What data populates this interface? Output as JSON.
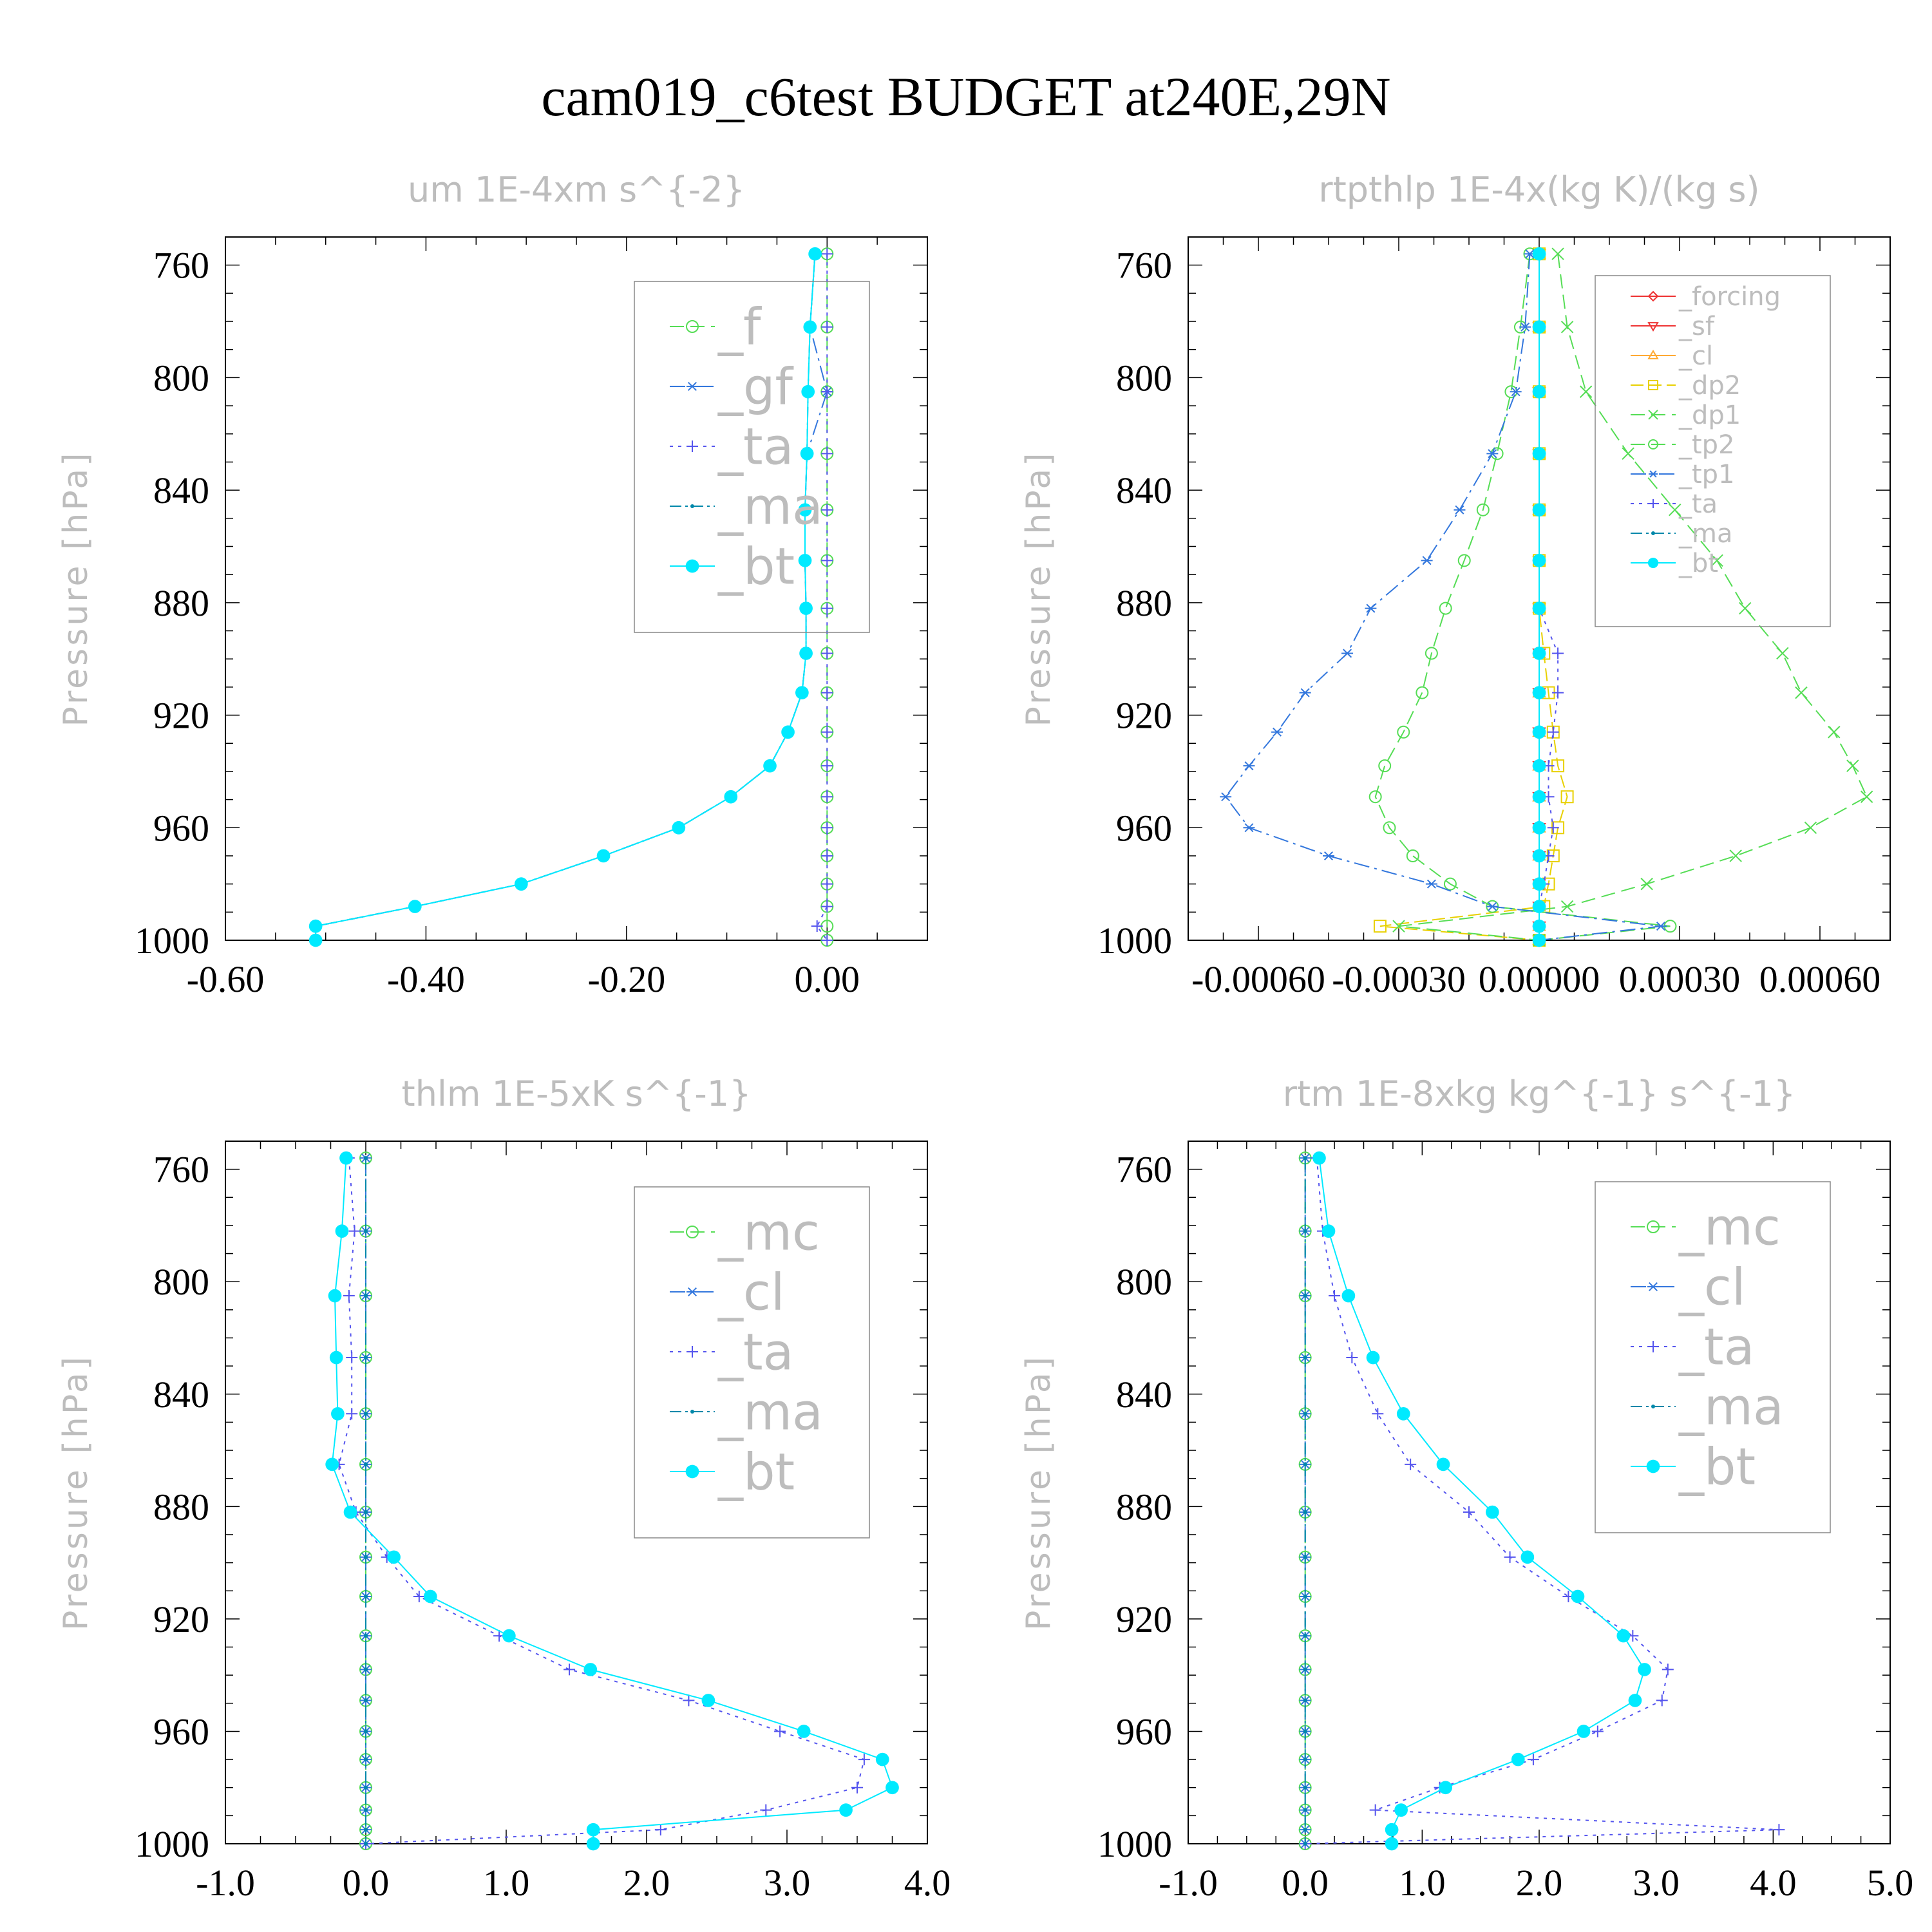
{
  "title": "cam019_c6test  BUDGET at240E,29N",
  "colors": {
    "green": "#55dd55",
    "blue": "#3377dd",
    "purple": "#5555ee",
    "teal": "#0088aa",
    "cyan": "#00eaff",
    "red": "#ee3333",
    "orange": "#ffaa33",
    "yellow": "#e8d000",
    "gray": "#bdbdbd"
  },
  "chart_data": [
    {
      "type": "line",
      "title": "um  1E-4xm s^{-2}",
      "ylabel": "Pressure [hPa]",
      "ylim": [
        1000,
        750
      ],
      "yticks": [
        "760",
        "800",
        "840",
        "880",
        "920",
        "960",
        "1000"
      ],
      "xlim": [
        -0.6,
        0.1
      ],
      "xticks": [
        "-0.60",
        "-0.40",
        "-0.20",
        "0.00"
      ],
      "legend": "top-right",
      "pressure": [
        756,
        782,
        805,
        827,
        847,
        865,
        882,
        898,
        912,
        926,
        938,
        949,
        960,
        970,
        980,
        988,
        995,
        1000
      ],
      "series": [
        {
          "name": "_f",
          "color": "green",
          "marker": "circle",
          "values": [
            0,
            0,
            0,
            0,
            0,
            0,
            0,
            0,
            0,
            0,
            0,
            0,
            0,
            0,
            0,
            0,
            0,
            0
          ]
        },
        {
          "name": "_gf",
          "color": "blue",
          "marker": "asterisk",
          "values": [
            -0.012,
            -0.017,
            -0.0,
            -0.02,
            -0.022,
            -0.022,
            -0.021,
            -0.021,
            -0.025,
            -0.039,
            -0.057,
            -0.096,
            -0.148,
            -0.223,
            -0.305,
            -0.411,
            -0.51,
            -0.51
          ]
        },
        {
          "name": "_ta",
          "color": "purple",
          "marker": "plus",
          "values": [
            0,
            0,
            0,
            0,
            0,
            0,
            0,
            0,
            0,
            0,
            0,
            0,
            0,
            0,
            0,
            0,
            -0.01,
            0
          ]
        },
        {
          "name": "_ma",
          "color": "teal",
          "marker": "dot",
          "values": [
            -0.012,
            -0.017,
            -0.019,
            -0.02,
            -0.022,
            -0.022,
            -0.021,
            -0.021,
            -0.025,
            -0.039,
            -0.057,
            -0.096,
            -0.148,
            -0.223,
            -0.305,
            -0.411,
            -0.51,
            -0.51
          ]
        },
        {
          "name": "_bt",
          "color": "cyan",
          "marker": "filled",
          "values": [
            -0.012,
            -0.017,
            -0.019,
            -0.02,
            -0.022,
            -0.022,
            -0.021,
            -0.021,
            -0.025,
            -0.039,
            -0.057,
            -0.096,
            -0.148,
            -0.223,
            -0.305,
            -0.411,
            -0.51,
            -0.51
          ]
        }
      ]
    },
    {
      "type": "line",
      "title": "rtpthlp  1E-4x(kg K)/(kg s)",
      "ylabel": "Pressure [hPa]",
      "ylim": [
        1000,
        750
      ],
      "yticks": [
        "760",
        "800",
        "840",
        "880",
        "920",
        "960",
        "1000"
      ],
      "xlim": [
        -0.00075,
        0.00075
      ],
      "xticks": [
        "-0.00060",
        "-0.00030",
        "0.00000",
        "0.00030",
        "0.00060"
      ],
      "legend": "top-right",
      "pressure": [
        756,
        782,
        805,
        827,
        847,
        865,
        882,
        898,
        912,
        926,
        938,
        949,
        960,
        970,
        980,
        988,
        995,
        1000
      ],
      "series": [
        {
          "name": "_forcing",
          "color": "red",
          "marker": "diamond",
          "values": [
            0,
            0,
            0,
            0,
            0,
            0,
            0,
            0,
            0,
            0,
            0,
            0,
            0,
            0,
            0,
            0,
            0,
            0
          ]
        },
        {
          "name": "_sf",
          "color": "red",
          "marker": "triangle-down",
          "values": [
            0,
            0,
            0,
            0,
            0,
            0,
            0,
            0,
            0,
            0,
            0,
            0,
            0,
            0,
            0,
            0,
            0,
            0
          ]
        },
        {
          "name": "_cl",
          "color": "orange",
          "marker": "triangle-up",
          "values": [
            0,
            0,
            0,
            0,
            0,
            0,
            0,
            0,
            0,
            0,
            0,
            0,
            0,
            0,
            0,
            0,
            0,
            0
          ]
        },
        {
          "name": "_dp2",
          "color": "yellow",
          "marker": "square",
          "values": [
            0,
            0,
            0,
            0,
            0,
            0,
            0,
            1e-05,
            2e-05,
            3e-05,
            4e-05,
            6e-05,
            4e-05,
            3e-05,
            2e-05,
            1e-05,
            -0.00034,
            0
          ]
        },
        {
          "name": "_dp1",
          "color": "green",
          "marker": "x",
          "values": [
            4e-05,
            6e-05,
            0.0001,
            0.00019,
            0.00029,
            0.00038,
            0.00044,
            0.00052,
            0.00056,
            0.00063,
            0.00067,
            0.0007,
            0.00058,
            0.00042,
            0.00023,
            6e-05,
            -0.0003,
            0
          ]
        },
        {
          "name": "_tp2",
          "color": "green",
          "marker": "circle",
          "values": [
            -2e-05,
            -4e-05,
            -6e-05,
            -9e-05,
            -0.00012,
            -0.00016,
            -0.0002,
            -0.00023,
            -0.00025,
            -0.00029,
            -0.00033,
            -0.00035,
            -0.00032,
            -0.00027,
            -0.00019,
            -0.0001,
            0.00028,
            0
          ]
        },
        {
          "name": "_tp1",
          "color": "blue",
          "marker": "asterisk",
          "values": [
            -2e-05,
            -3e-05,
            -5e-05,
            -0.0001,
            -0.00017,
            -0.00024,
            -0.00036,
            -0.00041,
            -0.0005,
            -0.00056,
            -0.00062,
            -0.00067,
            -0.00062,
            -0.00045,
            -0.00023,
            -0.0001,
            0.00026,
            0
          ]
        },
        {
          "name": "_ta",
          "color": "purple",
          "marker": "plus",
          "values": [
            0,
            0,
            0,
            0,
            0,
            0,
            0,
            4e-05,
            4e-05,
            3e-05,
            2e-05,
            2e-05,
            3e-05,
            2e-05,
            1e-05,
            0,
            0,
            0
          ]
        },
        {
          "name": "_ma",
          "color": "teal",
          "marker": "dot",
          "values": [
            0,
            0,
            0,
            0,
            0,
            0,
            0,
            0,
            0,
            0,
            0,
            0,
            0,
            0,
            0,
            0,
            0,
            0
          ]
        },
        {
          "name": "_bt",
          "color": "cyan",
          "marker": "filled",
          "values": [
            0,
            0,
            0,
            0,
            0,
            0,
            0,
            0,
            0,
            0,
            0,
            0,
            0,
            0,
            0,
            0,
            0,
            0
          ]
        }
      ]
    },
    {
      "type": "line",
      "title": "thlm  1E-5xK s^{-1}",
      "ylabel": "Pressure [hPa]",
      "ylim": [
        1000,
        750
      ],
      "yticks": [
        "760",
        "800",
        "840",
        "880",
        "920",
        "960",
        "1000"
      ],
      "xlim": [
        -1.0,
        4.0
      ],
      "xticks": [
        "-1.0",
        "0.0",
        "1.0",
        "2.0",
        "3.0",
        "4.0"
      ],
      "legend": "top-right",
      "pressure": [
        756,
        782,
        805,
        827,
        847,
        865,
        882,
        898,
        912,
        926,
        938,
        949,
        960,
        970,
        980,
        988,
        995,
        1000
      ],
      "series": [
        {
          "name": "_mc",
          "color": "green",
          "marker": "circle",
          "values": [
            0,
            0,
            0,
            0,
            0,
            0,
            0,
            0,
            0,
            0,
            0,
            0,
            0,
            0,
            0,
            0,
            0,
            0
          ]
        },
        {
          "name": "_cl",
          "color": "blue",
          "marker": "asterisk",
          "values": [
            0,
            0,
            0,
            0,
            0,
            0,
            0,
            0,
            0,
            0,
            0,
            0,
            0,
            0,
            0,
            0,
            0,
            0
          ]
        },
        {
          "name": "_ta",
          "color": "purple",
          "marker": "plus",
          "values": [
            -0.12,
            -0.08,
            -0.12,
            -0.1,
            -0.1,
            -0.19,
            -0.07,
            0.15,
            0.38,
            0.95,
            1.45,
            2.3,
            2.95,
            3.55,
            3.5,
            2.85,
            2.1,
            0
          ]
        },
        {
          "name": "_ma",
          "color": "teal",
          "marker": "dot",
          "values": [
            0,
            0,
            0,
            0,
            0,
            0,
            0,
            0,
            0,
            0,
            0,
            0,
            0,
            0,
            0,
            0,
            0,
            0
          ]
        },
        {
          "name": "_bt",
          "color": "cyan",
          "marker": "filled",
          "values": [
            -0.14,
            -0.17,
            -0.22,
            -0.21,
            -0.2,
            -0.24,
            -0.11,
            0.2,
            0.46,
            1.02,
            1.6,
            2.44,
            3.12,
            3.68,
            3.75,
            3.42,
            1.62,
            1.62
          ]
        }
      ]
    },
    {
      "type": "line",
      "title": "rtm  1E-8xkg kg^{-1} s^{-1}",
      "ylabel": "Pressure [hPa]",
      "ylim": [
        1000,
        750
      ],
      "yticks": [
        "760",
        "800",
        "840",
        "880",
        "920",
        "960",
        "1000"
      ],
      "xlim": [
        -1.0,
        5.0
      ],
      "xticks": [
        "-1.0",
        "0.0",
        "1.0",
        "2.0",
        "3.0",
        "4.0",
        "5.0"
      ],
      "legend": "top-right",
      "pressure": [
        756,
        782,
        805,
        827,
        847,
        865,
        882,
        898,
        912,
        926,
        938,
        949,
        960,
        970,
        980,
        988,
        995,
        1000
      ],
      "series": [
        {
          "name": "_mc",
          "color": "green",
          "marker": "circle",
          "values": [
            0,
            0,
            0,
            0,
            0,
            0,
            0,
            0,
            0,
            0,
            0,
            0,
            0,
            0,
            0,
            0,
            0,
            0
          ]
        },
        {
          "name": "_cl",
          "color": "blue",
          "marker": "asterisk",
          "values": [
            0,
            0,
            0,
            0,
            0,
            0,
            0,
            0,
            0,
            0,
            0,
            0,
            0,
            0,
            0,
            0,
            0,
            0
          ]
        },
        {
          "name": "_ta",
          "color": "purple",
          "marker": "plus",
          "values": [
            0.1,
            0.15,
            0.25,
            0.4,
            0.62,
            0.9,
            1.4,
            1.75,
            2.25,
            2.8,
            3.1,
            3.05,
            2.5,
            1.95,
            1.15,
            0.6,
            4.05,
            0
          ]
        },
        {
          "name": "_ma",
          "color": "teal",
          "marker": "dot",
          "values": [
            0,
            0,
            0,
            0,
            0,
            0,
            0,
            0,
            0,
            0,
            0,
            0,
            0,
            0,
            0,
            0,
            0,
            0
          ]
        },
        {
          "name": "_bt",
          "color": "cyan",
          "marker": "filled",
          "values": [
            0.12,
            0.2,
            0.37,
            0.58,
            0.84,
            1.18,
            1.6,
            1.9,
            2.33,
            2.72,
            2.9,
            2.82,
            2.38,
            1.82,
            1.2,
            0.82,
            0.74,
            0.74
          ]
        }
      ]
    }
  ]
}
